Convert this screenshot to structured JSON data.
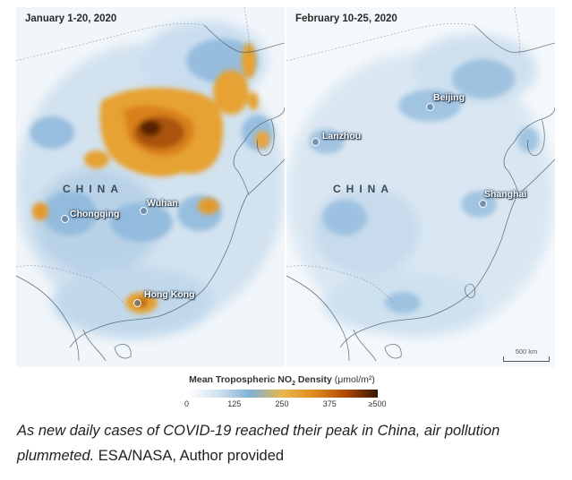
{
  "legend": {
    "title_prefix": "Mean Tropospheric NO",
    "title_sub": "2",
    "title_suffix": " Density ",
    "unit": "(μmol/m²)",
    "ticks": [
      {
        "label": "0",
        "value": 0
      },
      {
        "label": "125",
        "value": 125
      },
      {
        "label": "250",
        "value": 250
      },
      {
        "label": "375",
        "value": 375
      },
      {
        "label": "≥500",
        "value": 500
      }
    ],
    "colors": [
      "#ffffff",
      "#cfe1f0",
      "#7fb0d8",
      "#e8b84a",
      "#e08a1e",
      "#b04a08",
      "#3a1600"
    ]
  },
  "panels": [
    {
      "title": "January 1-20, 2020",
      "country_label": "CHINA",
      "cities": [
        "Wuhan",
        "Chongqing",
        "Hong Kong"
      ]
    },
    {
      "title": "February 10-25, 2020",
      "country_label": "CHINA",
      "cities": [
        "Beijing",
        "Lanzhou",
        "Shanghai"
      ],
      "scale": "500 km"
    }
  ],
  "caption": {
    "italic": "As new daily cases of COVID-19 reached their peak in China, air pollution plummeted.",
    "credit": " ESA/NASA, Author provided"
  }
}
